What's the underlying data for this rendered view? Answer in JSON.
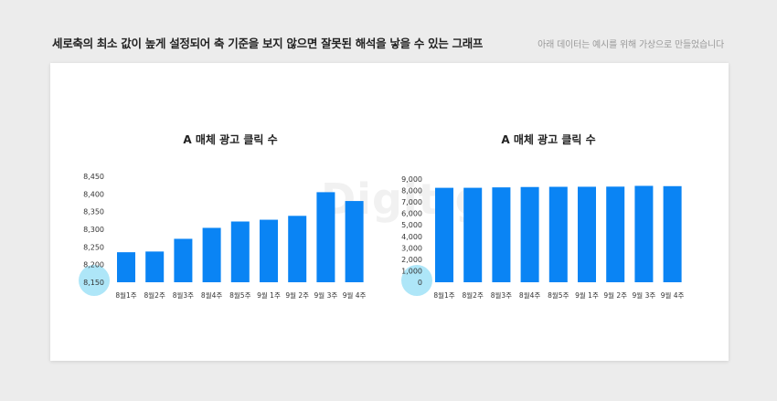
{
  "header": {
    "title": "세로축의 최소 값이 높게 설정되어 축 기준을 보지 않으면 잘못된 해석을 낳을 수 있는 그래프",
    "note": "아래 데이터는 예시를 위해 가상으로 만들었습니다"
  },
  "watermark": "Digit g",
  "colors": {
    "bar": "#0a84f4",
    "highlight": "#aee6f8",
    "background": "#ececec",
    "card": "#ffffff"
  },
  "chart_data": [
    {
      "type": "bar",
      "title": "A 매체 광고 클릭 수",
      "categories": [
        "8월1주",
        "8월2주",
        "8월3주",
        "8월4주",
        "8월5주",
        "9월 1주",
        "9월 2주",
        "9월 3주",
        "9월 4주"
      ],
      "values": [
        8235,
        8237,
        8273,
        8304,
        8322,
        8327,
        8338,
        8405,
        8380
      ],
      "ylim": [
        8150,
        8450
      ],
      "yticks": [
        "8,150",
        "8,200",
        "8,250",
        "8,300",
        "8,350",
        "8,400",
        "8,450"
      ],
      "highlight_label": "8,150"
    },
    {
      "type": "bar",
      "title": "A 매체 광고 클릭 수",
      "categories": [
        "8월1주",
        "8월2주",
        "8월3주",
        "8월4주",
        "8월5주",
        "9월 1주",
        "9월 2주",
        "9월 3주",
        "9월 4주"
      ],
      "values": [
        8235,
        8237,
        8273,
        8304,
        8322,
        8327,
        8338,
        8405,
        8380
      ],
      "ylim": [
        0,
        9000
      ],
      "yticks": [
        "0",
        "1,000",
        "2,000",
        "3,000",
        "4,000",
        "5,000",
        "6,000",
        "7,000",
        "8,000",
        "9,000"
      ],
      "highlight_label": "0"
    }
  ]
}
